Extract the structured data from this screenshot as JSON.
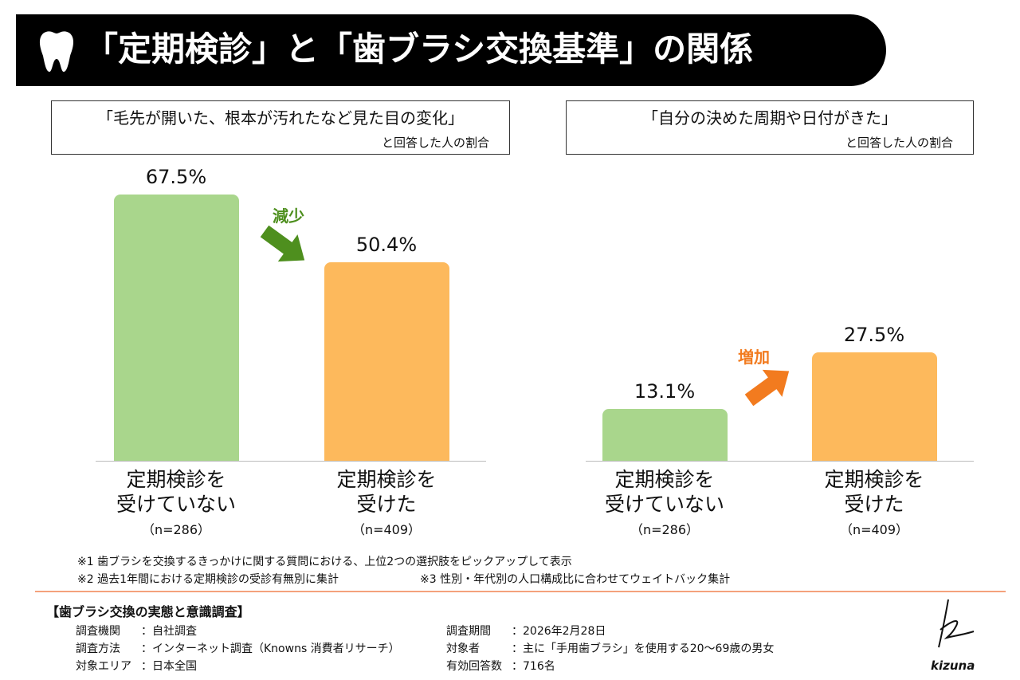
{
  "header": {
    "title": "「定期検診」と「歯ブラシ交換基準」の関係"
  },
  "chart_data": [
    {
      "type": "bar",
      "title": "「毛先が開いた、根本が汚れたなど見た目の変化」",
      "subtitle": "と回答した人の割合",
      "categories": [
        "定期検診を\n受けていない",
        "定期検診を\n受けた"
      ],
      "sample_sizes": [
        "（n=286）",
        "（n=409）"
      ],
      "values": [
        67.5,
        50.4
      ],
      "value_labels": [
        "67.5%",
        "50.4%"
      ],
      "colors": [
        "#a9d68c",
        "#fdb95c"
      ],
      "annotation": "減少",
      "annotation_color": "#4e8f1e"
    },
    {
      "type": "bar",
      "title": "「自分の決めた周期や日付がきた」",
      "subtitle": "と回答した人の割合",
      "categories": [
        "定期検診を\n受けていない",
        "定期検診を\n受けた"
      ],
      "sample_sizes": [
        "（n=286）",
        "（n=409）"
      ],
      "values": [
        13.1,
        27.5
      ],
      "value_labels": [
        "13.1%",
        "27.5%"
      ],
      "colors": [
        "#a9d68c",
        "#fdb95c"
      ],
      "annotation": "増加",
      "annotation_color": "#f27b1f"
    }
  ],
  "footnotes": [
    "※1 歯ブラシを交換するきっかけに関する質問における、上位2つの選択肢をピックアップして表示",
    "※2 過去1年間における定期検診の受診有無別に集計",
    "※3 性別・年代別の人口構成比に合わせてウェイトバック集計"
  ],
  "survey": {
    "title": "【歯ブラシ交換の実態と意識調査】",
    "rows": [
      [
        "調査機関",
        "：自社調査"
      ],
      [
        "調査方法",
        "：インターネット調査（Knowns 消費者リサーチ）"
      ],
      [
        "対象エリア",
        "：日本全国"
      ],
      [
        "調査期間",
        "：2026年2月28日"
      ],
      [
        "対象者",
        "：主に「手用歯ブラシ」を使用する20〜69歳の男女"
      ],
      [
        "有効回答数",
        "：716名"
      ]
    ]
  },
  "logo": "kizuna"
}
